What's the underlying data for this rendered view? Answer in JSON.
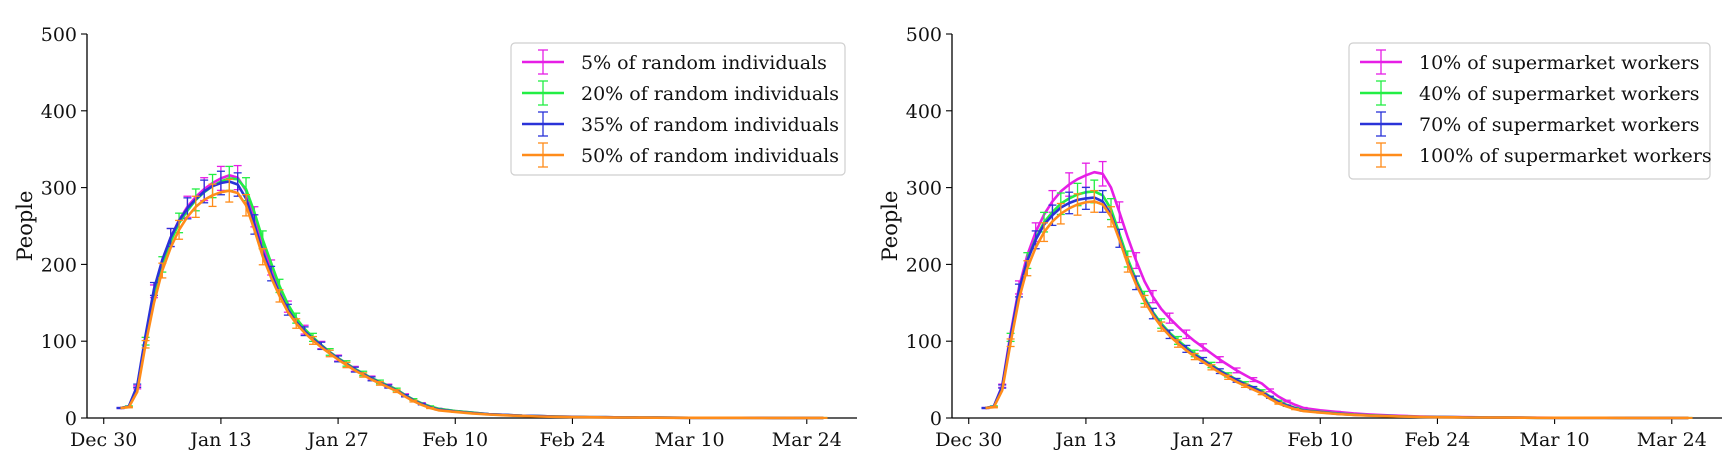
{
  "chart_data": [
    {
      "type": "line",
      "xlabel": "",
      "ylabel": "People",
      "ylim": [
        0,
        500
      ],
      "yticks": [
        0,
        100,
        200,
        300,
        400,
        500
      ],
      "xticks": [
        "Dec 30",
        "Jan 13",
        "Jan 27",
        "Feb 10",
        "Feb 24",
        "Mar 10",
        "Mar 24"
      ],
      "xtick_days": [
        0,
        14,
        28,
        42,
        56,
        70,
        84
      ],
      "xlim_days": [
        -2,
        90
      ],
      "legend_position": "top-right",
      "error_bars": true,
      "x": [
        2,
        3,
        4,
        5,
        6,
        7,
        8,
        9,
        10,
        11,
        12,
        13,
        14,
        15,
        16,
        17,
        18,
        19,
        20,
        21,
        22,
        23,
        24,
        25,
        26,
        27,
        28,
        29,
        30,
        31,
        32,
        33,
        34,
        35,
        36,
        37,
        38,
        39,
        40,
        42,
        44,
        46,
        48,
        50,
        52,
        54,
        56,
        58,
        60,
        62,
        64,
        66,
        68,
        70,
        72,
        74,
        76,
        78,
        80,
        82,
        84,
        86
      ],
      "series": [
        {
          "name": "5% of random individuals",
          "color": "#e61ee6",
          "values": [
            13,
            15,
            40,
            105,
            165,
            205,
            235,
            258,
            275,
            288,
            298,
            306,
            312,
            316,
            313,
            296,
            262,
            225,
            196,
            168,
            145,
            128,
            115,
            105,
            95,
            86,
            78,
            71,
            64,
            58,
            52,
            47,
            42,
            37,
            30,
            24,
            19,
            15,
            12,
            9,
            7,
            5,
            4,
            3,
            2.5,
            2,
            1.5,
            1,
            1,
            0.8,
            0.6,
            0.5,
            0.4,
            0.3,
            0.3,
            0.2,
            0.2,
            0.2,
            0.1,
            0.1,
            0.1,
            0.1
          ]
        },
        {
          "name": "20% of random individuals",
          "color": "#22ee44",
          "values": [
            13,
            15,
            38,
            100,
            160,
            200,
            230,
            254,
            270,
            284,
            294,
            302,
            308,
            312,
            311,
            298,
            268,
            232,
            202,
            172,
            148,
            130,
            116,
            105,
            95,
            86,
            78,
            71,
            64,
            58,
            52,
            47,
            42,
            37,
            30,
            24,
            19,
            15,
            12,
            9,
            7,
            5,
            4,
            3,
            2.5,
            2,
            1.5,
            1,
            1,
            0.8,
            0.6,
            0.5,
            0.4,
            0.3,
            0.3,
            0.2,
            0.2,
            0.2,
            0.1,
            0.1,
            0.1,
            0.1
          ]
        },
        {
          "name": "35% of random individuals",
          "color": "#2a33d8",
          "values": [
            13,
            15,
            42,
            108,
            168,
            206,
            235,
            257,
            273,
            285,
            295,
            302,
            306,
            308,
            304,
            286,
            252,
            216,
            188,
            162,
            141,
            125,
            113,
            103,
            94,
            85,
            77,
            70,
            63,
            57,
            51,
            46,
            41,
            36,
            29,
            23,
            18,
            14,
            11,
            8.5,
            6.5,
            5,
            4,
            3,
            2.5,
            2,
            1.5,
            1,
            1,
            0.8,
            0.6,
            0.5,
            0.4,
            0.3,
            0.3,
            0.2,
            0.2,
            0.2,
            0.1,
            0.1,
            0.1,
            0.1
          ]
        },
        {
          "name": "50% of random individuals",
          "color": "#ff8c1a",
          "values": [
            13,
            14,
            34,
            96,
            150,
            192,
            222,
            245,
            262,
            275,
            284,
            290,
            294,
            296,
            293,
            277,
            245,
            210,
            183,
            159,
            138,
            123,
            111,
            101,
            92,
            84,
            76,
            69,
            62,
            56,
            50,
            45,
            40,
            35,
            28,
            22,
            17,
            13,
            10,
            8,
            6,
            4.5,
            3.5,
            2.7,
            2,
            1.5,
            1.2,
            1,
            0.8,
            0.6,
            0.5,
            0.4,
            0.3,
            0.3,
            0.2,
            0.2,
            0.2,
            0.1,
            0.1,
            0.1,
            0.1,
            0.1
          ]
        }
      ]
    },
    {
      "type": "line",
      "xlabel": "",
      "ylabel": "People",
      "ylim": [
        0,
        500
      ],
      "yticks": [
        0,
        100,
        200,
        300,
        400,
        500
      ],
      "xticks": [
        "Dec 30",
        "Jan 13",
        "Jan 27",
        "Feb 10",
        "Feb 24",
        "Mar 10",
        "Mar 24"
      ],
      "xtick_days": [
        0,
        14,
        28,
        42,
        56,
        70,
        84
      ],
      "xlim_days": [
        -2,
        90
      ],
      "legend_position": "top-right",
      "error_bars": true,
      "x": [
        2,
        3,
        4,
        5,
        6,
        7,
        8,
        9,
        10,
        11,
        12,
        13,
        14,
        15,
        16,
        17,
        18,
        19,
        20,
        21,
        22,
        23,
        24,
        25,
        26,
        27,
        28,
        29,
        30,
        31,
        32,
        33,
        34,
        35,
        36,
        37,
        38,
        39,
        40,
        42,
        44,
        46,
        48,
        50,
        52,
        54,
        56,
        58,
        60,
        62,
        64,
        66,
        68,
        70,
        72,
        74,
        76,
        78,
        80,
        82,
        84,
        86
      ],
      "series": [
        {
          "name": "10% of supermarket workers",
          "color": "#e61ee6",
          "values": [
            13,
            15,
            42,
            110,
            170,
            212,
            242,
            265,
            282,
            295,
            304,
            311,
            316,
            320,
            318,
            300,
            268,
            235,
            205,
            178,
            158,
            142,
            130,
            119,
            109,
            100,
            92,
            84,
            76,
            69,
            62,
            56,
            50,
            45,
            36,
            28,
            22,
            17,
            13,
            10,
            8,
            6,
            4.5,
            3.5,
            2.7,
            2,
            1.5,
            1.2,
            1,
            0.8,
            0.6,
            0.5,
            0.4,
            0.3,
            0.3,
            0.2,
            0.2,
            0.2,
            0.1,
            0.1,
            0.1,
            0.1
          ]
        },
        {
          "name": "40% of supermarket workers",
          "color": "#22ee44",
          "values": [
            13,
            15,
            40,
            105,
            165,
            205,
            234,
            255,
            268,
            279,
            286,
            291,
            294,
            295,
            290,
            272,
            240,
            207,
            180,
            157,
            138,
            123,
            111,
            101,
            92,
            84,
            76,
            69,
            62,
            56,
            50,
            45,
            40,
            35,
            28,
            22,
            17,
            13,
            10,
            8,
            6,
            4.5,
            3.5,
            2.7,
            2,
            1.5,
            1.2,
            1,
            0.8,
            0.6,
            0.5,
            0.4,
            0.3,
            0.3,
            0.2,
            0.2,
            0.2,
            0.1,
            0.1,
            0.1,
            0.1,
            0.1
          ]
        },
        {
          "name": "70% of supermarket workers",
          "color": "#2a33d8",
          "values": [
            13,
            15,
            41,
            106,
            166,
            205,
            232,
            252,
            264,
            274,
            280,
            284,
            286,
            287,
            282,
            265,
            234,
            202,
            176,
            154,
            136,
            121,
            109,
            99,
            90,
            82,
            75,
            68,
            61,
            55,
            49,
            44,
            39,
            34,
            27,
            21,
            16,
            12.5,
            9.5,
            7.5,
            5.5,
            4.2,
            3.3,
            2.5,
            2,
            1.5,
            1.2,
            1,
            0.8,
            0.6,
            0.5,
            0.4,
            0.3,
            0.3,
            0.2,
            0.2,
            0.2,
            0.1,
            0.1,
            0.1,
            0.1,
            0.1
          ]
        },
        {
          "name": "100% of supermarket workers",
          "color": "#ff8c1a",
          "values": [
            13,
            14,
            36,
            98,
            155,
            195,
            222,
            242,
            256,
            266,
            273,
            278,
            281,
            282,
            278,
            262,
            232,
            200,
            174,
            152,
            134,
            119,
            107,
            97,
            88,
            80,
            73,
            66,
            59,
            53,
            47,
            42,
            37,
            32,
            25,
            19,
            15,
            11.5,
            9,
            7,
            5.2,
            4,
            3,
            2.3,
            1.8,
            1.4,
            1.1,
            0.9,
            0.7,
            0.6,
            0.5,
            0.4,
            0.3,
            0.3,
            0.2,
            0.2,
            0.2,
            0.1,
            0.1,
            0.1,
            0.1,
            0.1
          ]
        }
      ]
    }
  ]
}
